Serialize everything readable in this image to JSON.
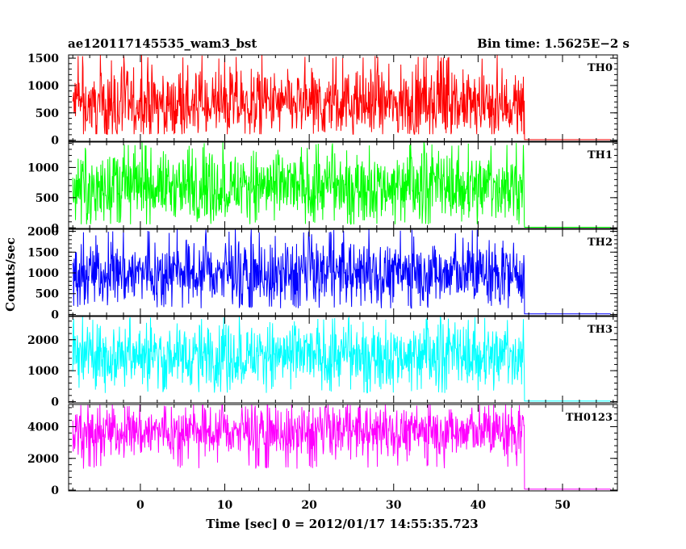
{
  "header": {
    "title_left": "ae120117145535_wam3_bst",
    "title_right": "Bin time: 1.5625E−2 s"
  },
  "chart_data": {
    "type": "line",
    "xlabel": "Time [sec] 0 = 2012/01/17 14:55:35.723",
    "ylabel": "Counts/sec",
    "xlim": [
      -8.5,
      56.5
    ],
    "x_ticks": [
      0,
      10,
      20,
      30,
      40,
      50
    ],
    "x_tick_labels": [
      "0",
      "10",
      "20",
      "30",
      "40",
      "50"
    ],
    "bin_time": 0.015625,
    "active_range": [
      -8,
      45.5
    ],
    "panels": [
      {
        "name": "TH0",
        "color": "#ff0000",
        "ylim": [
          -20,
          1560
        ],
        "y_ticks": [
          0,
          500,
          1000,
          1500
        ],
        "y_tick_labels": [
          "0",
          "500",
          "1000",
          "1500"
        ],
        "active_mean": 650,
        "active_min": 110,
        "active_max": 1560,
        "post_level": 10
      },
      {
        "name": "TH1",
        "color": "#00ff00",
        "ylim": [
          -10,
          1420
        ],
        "y_ticks": [
          0,
          500,
          1000
        ],
        "y_tick_labels": [
          "0",
          "500",
          "1000"
        ],
        "active_mean": 690,
        "active_min": 60,
        "active_max": 1420,
        "post_level": 10
      },
      {
        "name": "TH2",
        "color": "#0000ff",
        "ylim": [
          -30,
          2050
        ],
        "y_ticks": [
          0,
          500,
          1000,
          1500,
          2000
        ],
        "y_tick_labels": [
          "0",
          "500",
          "1000",
          "1500",
          "2000"
        ],
        "active_mean": 1000,
        "active_min": 150,
        "active_max": 2050,
        "post_level": 15
      },
      {
        "name": "TH3",
        "color": "#00ffff",
        "ylim": [
          -40,
          2750
        ],
        "y_ticks": [
          0,
          1000,
          2000
        ],
        "y_tick_labels": [
          "0",
          "1000",
          "2000"
        ],
        "active_mean": 1500,
        "active_min": 280,
        "active_max": 2750,
        "post_level": 20
      },
      {
        "name": "TH0123",
        "color": "#ff00ff",
        "ylim": [
          -50,
          5400
        ],
        "y_ticks": [
          0,
          2000,
          4000
        ],
        "y_tick_labels": [
          "0",
          "2000",
          "4000"
        ],
        "active_mean": 3700,
        "active_min": 1350,
        "active_max": 5400,
        "post_level": 60
      }
    ]
  }
}
